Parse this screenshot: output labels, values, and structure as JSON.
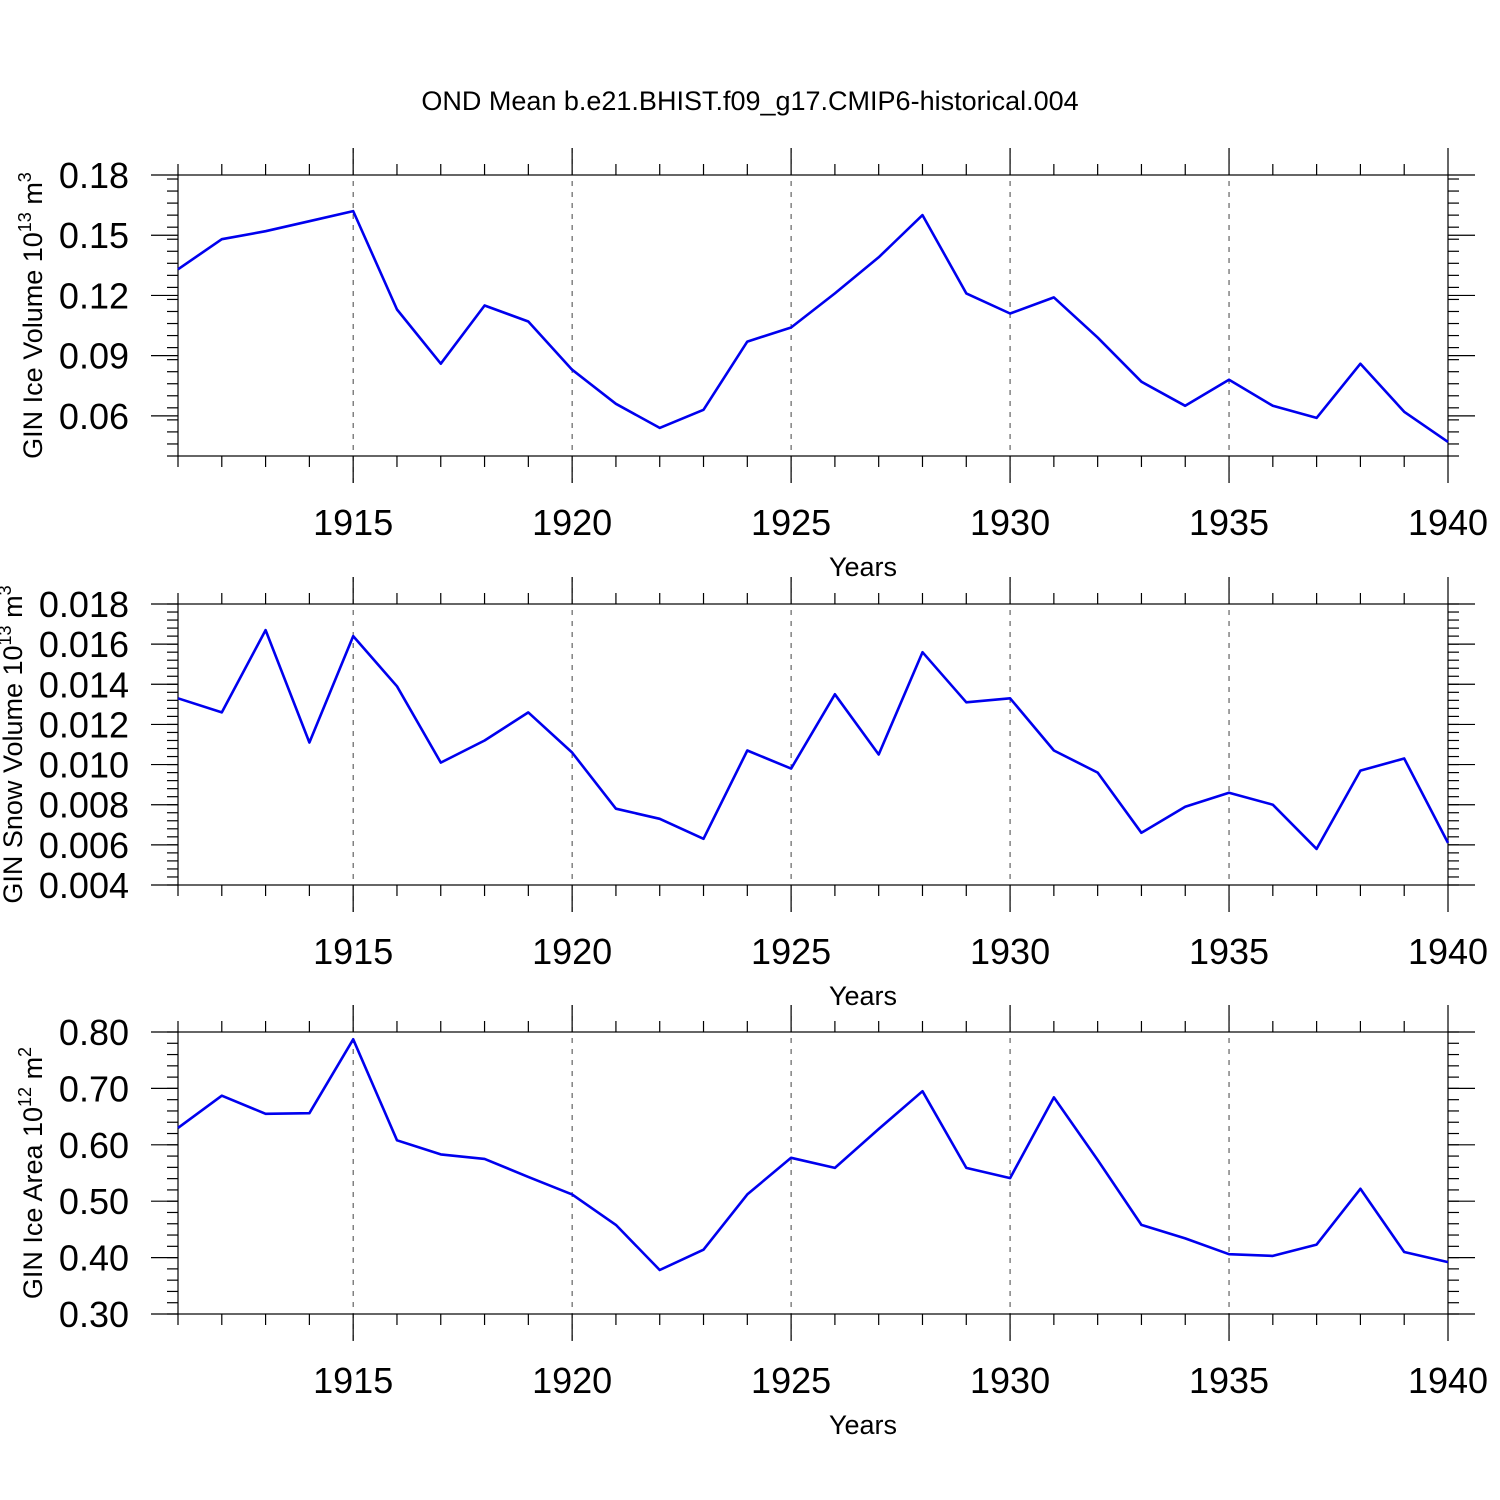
{
  "chart_data": {
    "title": "OND Mean b.e21.BHIST.f09_g17.CMIP6-historical.004",
    "type": "line",
    "panels": [
      {
        "id": "ice-volume",
        "ylabel": "GIN Ice Volume 10",
        "ylabel_exp": "13",
        "ylabel_unit": " m",
        "ylabel_unit_exp": "3",
        "xlabel": "Years",
        "xlim": [
          1911,
          1940
        ],
        "ylim": [
          0.04,
          0.18
        ],
        "yticks": [
          0.06,
          0.09,
          0.12,
          0.15,
          0.18
        ],
        "ytick_labels": [
          "0.06",
          "0.09",
          "0.12",
          "0.15",
          "0.18"
        ],
        "yminor_step": 0.006,
        "xticks": [
          1915,
          1920,
          1925,
          1930,
          1935,
          1940
        ],
        "xtick_labels": [
          "1915",
          "1920",
          "1925",
          "1930",
          "1935",
          "1940"
        ],
        "x": [
          1911,
          1912,
          1913,
          1914,
          1915,
          1916,
          1917,
          1918,
          1919,
          1920,
          1921,
          1922,
          1923,
          1924,
          1925,
          1926,
          1927,
          1928,
          1929,
          1930,
          1931,
          1932,
          1933,
          1934,
          1935,
          1936,
          1937,
          1938,
          1939,
          1940
        ],
        "y": [
          0.133,
          0.148,
          0.152,
          0.157,
          0.162,
          0.113,
          0.086,
          0.115,
          0.107,
          0.083,
          0.066,
          0.054,
          0.063,
          0.097,
          0.104,
          0.121,
          0.139,
          0.16,
          0.121,
          0.111,
          0.119,
          0.099,
          0.077,
          0.065,
          0.078,
          0.065,
          0.059,
          0.086,
          0.062,
          0.047
        ]
      },
      {
        "id": "snow-volume",
        "ylabel": "GIN Snow Volume 10",
        "ylabel_exp": "13",
        "ylabel_unit": " m",
        "ylabel_unit_exp": "3",
        "xlabel": "Years",
        "xlim": [
          1911,
          1940
        ],
        "ylim": [
          0.004,
          0.018
        ],
        "yticks": [
          0.004,
          0.006,
          0.008,
          0.01,
          0.012,
          0.014,
          0.016,
          0.018
        ],
        "ytick_labels": [
          "0.004",
          "0.006",
          "0.008",
          "0.010",
          "0.012",
          "0.014",
          "0.016",
          "0.018"
        ],
        "yminor_step": 0.0004,
        "xticks": [
          1915,
          1920,
          1925,
          1930,
          1935,
          1940
        ],
        "xtick_labels": [
          "1915",
          "1920",
          "1925",
          "1930",
          "1935",
          "1940"
        ],
        "x": [
          1911,
          1912,
          1913,
          1914,
          1915,
          1916,
          1917,
          1918,
          1919,
          1920,
          1921,
          1922,
          1923,
          1924,
          1925,
          1926,
          1927,
          1928,
          1929,
          1930,
          1931,
          1932,
          1933,
          1934,
          1935,
          1936,
          1937,
          1938,
          1939,
          1940
        ],
        "y": [
          0.0133,
          0.0126,
          0.0167,
          0.0111,
          0.0164,
          0.0139,
          0.0101,
          0.0112,
          0.0126,
          0.0106,
          0.0078,
          0.0073,
          0.0063,
          0.0107,
          0.0098,
          0.0135,
          0.0105,
          0.0156,
          0.0131,
          0.0133,
          0.0107,
          0.0096,
          0.0066,
          0.0079,
          0.0086,
          0.008,
          0.0058,
          0.0097,
          0.0103,
          0.0061
        ]
      },
      {
        "id": "ice-area",
        "ylabel": "GIN Ice Area 10",
        "ylabel_exp": "12",
        "ylabel_unit": " m",
        "ylabel_unit_exp": "2",
        "xlabel": "Years",
        "xlim": [
          1911,
          1940
        ],
        "ylim": [
          0.3,
          0.8
        ],
        "yticks": [
          0.3,
          0.4,
          0.5,
          0.6,
          0.7,
          0.8
        ],
        "ytick_labels": [
          "0.30",
          "0.40",
          "0.50",
          "0.60",
          "0.70",
          "0.80"
        ],
        "yminor_step": 0.02,
        "xticks": [
          1915,
          1920,
          1925,
          1930,
          1935,
          1940
        ],
        "xtick_labels": [
          "1915",
          "1920",
          "1925",
          "1930",
          "1935",
          "1940"
        ],
        "x": [
          1911,
          1912,
          1913,
          1914,
          1915,
          1916,
          1917,
          1918,
          1919,
          1920,
          1921,
          1922,
          1923,
          1924,
          1925,
          1926,
          1927,
          1928,
          1929,
          1930,
          1931,
          1932,
          1933,
          1934,
          1935,
          1936,
          1937,
          1938,
          1939,
          1940
        ],
        "y": [
          0.63,
          0.687,
          0.655,
          0.656,
          0.787,
          0.608,
          0.583,
          0.575,
          0.543,
          0.512,
          0.458,
          0.378,
          0.414,
          0.512,
          0.577,
          0.559,
          0.628,
          0.695,
          0.559,
          0.541,
          0.684,
          0.573,
          0.458,
          0.434,
          0.406,
          0.403,
          0.423,
          0.522,
          0.41,
          0.392
        ]
      }
    ],
    "colors": {
      "line": "#0000ee",
      "axis": "#000000",
      "grid": "#444444"
    }
  }
}
